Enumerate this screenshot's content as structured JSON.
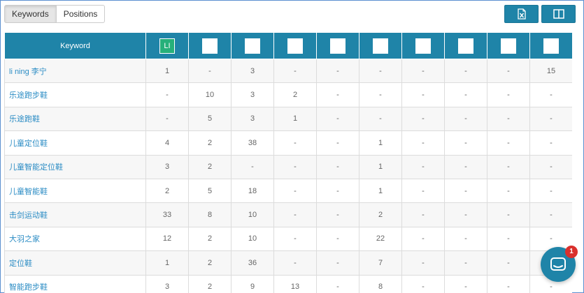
{
  "tabs": [
    {
      "label": "Keywords",
      "active": true
    },
    {
      "label": "Positions",
      "active": false
    }
  ],
  "actions": [
    {
      "icon": "excel-export-icon"
    },
    {
      "icon": "columns-icon"
    }
  ],
  "table": {
    "keyword_header": "Keyword",
    "site_columns": [
      "LI",
      "",
      "",
      "",
      "",
      "",
      "",
      "",
      "",
      ""
    ],
    "rows": [
      {
        "keyword": "li ning 李宁",
        "cells": [
          "1",
          "-",
          "3",
          "-",
          "-",
          "-",
          "-",
          "-",
          "-",
          "15"
        ]
      },
      {
        "keyword": "乐途跑步鞋",
        "cells": [
          "-",
          "10",
          "3",
          "2",
          "-",
          "-",
          "-",
          "-",
          "-",
          "-"
        ]
      },
      {
        "keyword": "乐途跑鞋",
        "cells": [
          "-",
          "5",
          "3",
          "1",
          "-",
          "-",
          "-",
          "-",
          "-",
          "-"
        ]
      },
      {
        "keyword": "儿童定位鞋",
        "cells": [
          "4",
          "2",
          "38",
          "-",
          "-",
          "1",
          "-",
          "-",
          "-",
          "-"
        ]
      },
      {
        "keyword": "儿童智能定位鞋",
        "cells": [
          "3",
          "2",
          "-",
          "-",
          "-",
          "1",
          "-",
          "-",
          "-",
          "-"
        ]
      },
      {
        "keyword": "儿童智能鞋",
        "cells": [
          "2",
          "5",
          "18",
          "-",
          "-",
          "1",
          "-",
          "-",
          "-",
          "-"
        ]
      },
      {
        "keyword": "击剑运动鞋",
        "cells": [
          "33",
          "8",
          "10",
          "-",
          "-",
          "2",
          "-",
          "-",
          "-",
          "-"
        ]
      },
      {
        "keyword": "大羽之家",
        "cells": [
          "12",
          "2",
          "10",
          "-",
          "-",
          "22",
          "-",
          "-",
          "-",
          "-"
        ]
      },
      {
        "keyword": "定位鞋",
        "cells": [
          "1",
          "2",
          "36",
          "-",
          "-",
          "7",
          "-",
          "-",
          "-",
          "-"
        ]
      },
      {
        "keyword": "智能跑步鞋",
        "cells": [
          "3",
          "2",
          "9",
          "13",
          "-",
          "8",
          "-",
          "-",
          "-",
          "-"
        ]
      }
    ]
  },
  "chat": {
    "icon": "chat-icon",
    "badge": "1"
  },
  "colors": {
    "header": "#1f84a8",
    "link": "#2b8cc4",
    "li_badge": "#26b07a",
    "notification": "#d9302d"
  }
}
